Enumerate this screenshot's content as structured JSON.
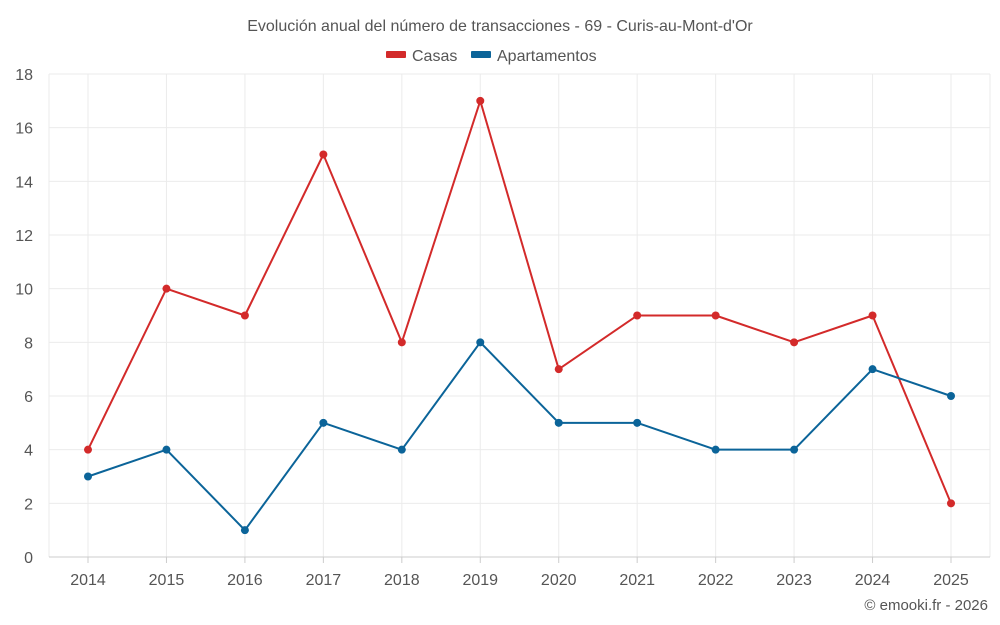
{
  "chart_data": {
    "type": "line",
    "title": "Evolución anual del número de transacciones - 69 - Curis-au-Mont-d'Or",
    "categories": [
      "2014",
      "2015",
      "2016",
      "2017",
      "2018",
      "2019",
      "2020",
      "2021",
      "2022",
      "2023",
      "2024",
      "2025"
    ],
    "series": [
      {
        "name": "Casas",
        "color": "#d32a2a",
        "values": [
          4,
          10,
          9,
          15,
          8,
          17,
          7,
          9,
          9,
          8,
          9,
          2
        ]
      },
      {
        "name": "Apartamentos",
        "color": "#0b6499",
        "values": [
          3,
          4,
          1,
          5,
          4,
          8,
          5,
          5,
          4,
          4,
          7,
          6
        ]
      }
    ],
    "ylim": [
      0,
      18
    ],
    "yticks": [
      0,
      2,
      4,
      6,
      8,
      10,
      12,
      14,
      16,
      18
    ],
    "grid": true,
    "legend_position": "top-center",
    "credit": "© emooki.fr - 2026"
  },
  "colors": {
    "grid": "#ebebeb",
    "axis": "#cccccc",
    "text": "#555555"
  }
}
